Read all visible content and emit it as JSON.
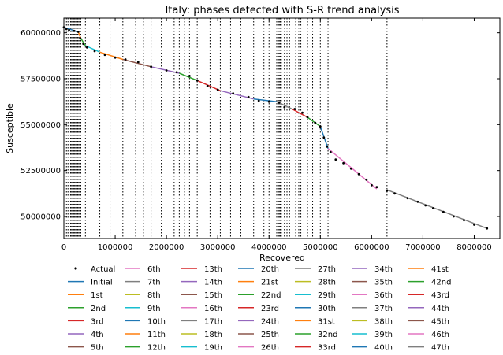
{
  "chart_data": {
    "type": "line",
    "title": "Italy: phases detected with S-R trend analysis",
    "xlabel": "Recovered",
    "ylabel": "Susceptible",
    "xlim": [
      0,
      8500000
    ],
    "ylim": [
      48800000,
      60800000
    ],
    "x_ticks": [
      0,
      1000000,
      2000000,
      3000000,
      4000000,
      5000000,
      6000000,
      7000000,
      8000000
    ],
    "x_tick_labels": [
      "0",
      "1000000",
      "2000000",
      "3000000",
      "4000000",
      "5000000",
      "6000000",
      "7000000",
      "8000000"
    ],
    "y_ticks": [
      50000000,
      52500000,
      55000000,
      57500000,
      60000000
    ],
    "y_tick_labels": [
      "50000000",
      "52500000",
      "55000000",
      "57500000",
      "60000000"
    ],
    "legend": {
      "placement": "below plot",
      "columns": 8,
      "entries": [
        "Actual",
        "Initial",
        "1st",
        "2nd",
        "3rd",
        "4th",
        "5th",
        "6th",
        "7th",
        "8th",
        "9th",
        "10th",
        "11th",
        "12th",
        "13th",
        "14th",
        "15th",
        "16th",
        "17th",
        "18th",
        "19th",
        "20th",
        "21st",
        "22nd",
        "23rd",
        "24th",
        "25th",
        "26th",
        "27th",
        "28th",
        "29th",
        "30th",
        "31st",
        "32nd",
        "33rd",
        "34th",
        "35th",
        "36th",
        "37th",
        "38th",
        "39th",
        "40th",
        "41st",
        "42nd",
        "43rd",
        "44th",
        "45th",
        "46th",
        "47th"
      ]
    },
    "colors": [
      "#1f77b4",
      "#ff7f0e",
      "#2ca02c",
      "#d62728",
      "#9467bd",
      "#8c564b",
      "#e377c2",
      "#7f7f7f",
      "#bcbd22",
      "#17becf"
    ],
    "change_points": [
      50000,
      80000,
      100000,
      130000,
      150000,
      170000,
      190000,
      210000,
      230000,
      250000,
      270000,
      290000,
      310000,
      330000,
      420000,
      700000,
      900000,
      1150000,
      1400000,
      1550000,
      1700000,
      1900000,
      2150000,
      2250000,
      2350000,
      2450000,
      2600000,
      2850000,
      3050000,
      3250000,
      3450000,
      3700000,
      3900000,
      4000000,
      4150000,
      4180000,
      4200000,
      4220000,
      4240000,
      4300000,
      4350000,
      4400000,
      4450000,
      4520000,
      4580000,
      4620000,
      4680000,
      4750000,
      4850000,
      5000000,
      5150000,
      6300000
    ],
    "actual_points": [
      [
        0,
        60300000
      ],
      [
        50000,
        60200000
      ],
      [
        100000,
        60150000
      ],
      [
        200000,
        60100000
      ],
      [
        280000,
        60050000
      ],
      [
        320000,
        59700000
      ],
      [
        380000,
        59400000
      ],
      [
        450000,
        59200000
      ],
      [
        600000,
        59000000
      ],
      [
        800000,
        58800000
      ],
      [
        1000000,
        58650000
      ],
      [
        1200000,
        58550000
      ],
      [
        1450000,
        58400000
      ],
      [
        1700000,
        58150000
      ],
      [
        2000000,
        57950000
      ],
      [
        2200000,
        57850000
      ],
      [
        2450000,
        57650000
      ],
      [
        2600000,
        57400000
      ],
      [
        2800000,
        57100000
      ],
      [
        3000000,
        56900000
      ],
      [
        3300000,
        56700000
      ],
      [
        3600000,
        56500000
      ],
      [
        3800000,
        56300000
      ],
      [
        4000000,
        56250000
      ],
      [
        4200000,
        56200000
      ],
      [
        4300000,
        55950000
      ],
      [
        4500000,
        55850000
      ],
      [
        4650000,
        55650000
      ],
      [
        4750000,
        55400000
      ],
      [
        4900000,
        55100000
      ],
      [
        5000000,
        54900000
      ],
      [
        5070000,
        54300000
      ],
      [
        5130000,
        53800000
      ],
      [
        5200000,
        53500000
      ],
      [
        5300000,
        53100000
      ],
      [
        5450000,
        52900000
      ],
      [
        5600000,
        52600000
      ],
      [
        5750000,
        52300000
      ],
      [
        5900000,
        52000000
      ],
      [
        6000000,
        51700000
      ],
      [
        6100000,
        51600000
      ],
      [
        6300000,
        51400000
      ],
      [
        6450000,
        51250000
      ],
      [
        6700000,
        51000000
      ],
      [
        6900000,
        50800000
      ],
      [
        7050000,
        50600000
      ],
      [
        7200000,
        50450000
      ],
      [
        7400000,
        50250000
      ],
      [
        7600000,
        50000000
      ],
      [
        7800000,
        49800000
      ],
      [
        8000000,
        49550000
      ],
      [
        8250000,
        49350000
      ]
    ],
    "fit_segments": [
      {
        "name": "Initial",
        "color": "#1f77b4",
        "points": [
          [
            0,
            60300000
          ],
          [
            280000,
            60050000
          ]
        ]
      },
      {
        "name": "1st",
        "color": "#ff7f0e",
        "points": [
          [
            280000,
            60050000
          ],
          [
            330000,
            59700000
          ]
        ]
      },
      {
        "name": "2nd",
        "color": "#2ca02c",
        "points": [
          [
            330000,
            59700000
          ],
          [
            420000,
            59300000
          ]
        ]
      },
      {
        "name": "3rd",
        "color": "#17becf",
        "points": [
          [
            420000,
            59300000
          ],
          [
            700000,
            58950000
          ]
        ]
      },
      {
        "name": "4th",
        "color": "#ff7f0e",
        "points": [
          [
            700000,
            58950000
          ],
          [
            1150000,
            58550000
          ]
        ]
      },
      {
        "name": "5th",
        "color": "#8c564b",
        "points": [
          [
            1150000,
            58550000
          ],
          [
            1700000,
            58150000
          ]
        ]
      },
      {
        "name": "6th",
        "color": "#9467bd",
        "points": [
          [
            1700000,
            58150000
          ],
          [
            2250000,
            57800000
          ]
        ]
      },
      {
        "name": "7th",
        "color": "#2ca02c",
        "points": [
          [
            2250000,
            57800000
          ],
          [
            2600000,
            57400000
          ]
        ]
      },
      {
        "name": "8th",
        "color": "#d62728",
        "points": [
          [
            2600000,
            57400000
          ],
          [
            3050000,
            56850000
          ]
        ]
      },
      {
        "name": "9th",
        "color": "#9467bd",
        "points": [
          [
            3050000,
            56850000
          ],
          [
            3700000,
            56400000
          ]
        ]
      },
      {
        "name": "10th",
        "color": "#1f77b4",
        "points": [
          [
            3700000,
            56400000
          ],
          [
            4150000,
            56250000
          ]
        ]
      },
      {
        "name": "11th",
        "color": "#7f7f7f",
        "points": [
          [
            4150000,
            56250000
          ],
          [
            4450000,
            55850000
          ]
        ]
      },
      {
        "name": "12th",
        "color": "#d62728",
        "points": [
          [
            4450000,
            55850000
          ],
          [
            4750000,
            55400000
          ]
        ]
      },
      {
        "name": "13th",
        "color": "#2ca02c",
        "points": [
          [
            4750000,
            55400000
          ],
          [
            5000000,
            54900000
          ]
        ]
      },
      {
        "name": "14th",
        "color": "#1f77b4",
        "points": [
          [
            5000000,
            54900000
          ],
          [
            5150000,
            53700000
          ]
        ]
      },
      {
        "name": "15th",
        "color": "#e377c2",
        "points": [
          [
            5150000,
            53700000
          ],
          [
            6100000,
            51500000
          ]
        ]
      },
      {
        "name": "16th",
        "color": "#7f7f7f",
        "points": [
          [
            6300000,
            51450000
          ],
          [
            8250000,
            49350000
          ]
        ]
      }
    ]
  }
}
